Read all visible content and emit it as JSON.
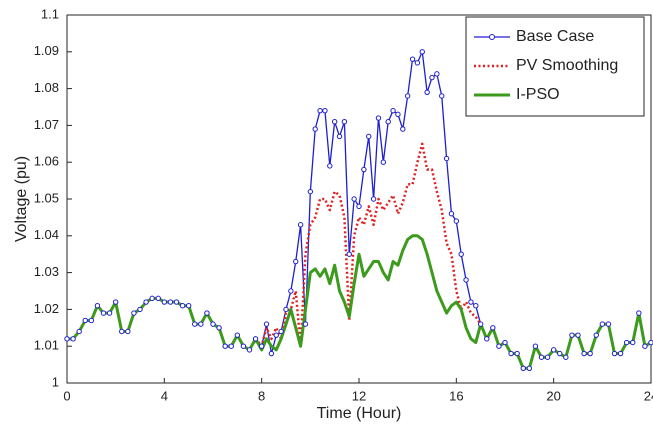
{
  "chart_data": {
    "type": "line",
    "xlabel": "Time (Hour)",
    "ylabel": "Voltage (pu)",
    "x": [
      0,
      0.25,
      0.5,
      0.75,
      1,
      1.25,
      1.5,
      1.75,
      2,
      2.25,
      2.5,
      2.75,
      3,
      3.25,
      3.5,
      3.75,
      4,
      4.25,
      4.5,
      4.75,
      5,
      5.25,
      5.5,
      5.75,
      6,
      6.25,
      6.5,
      6.75,
      7,
      7.25,
      7.5,
      7.75,
      8,
      8.2,
      8.4,
      8.6,
      8.8,
      9,
      9.2,
      9.4,
      9.6,
      9.8,
      10,
      10.2,
      10.4,
      10.6,
      10.8,
      11,
      11.2,
      11.4,
      11.6,
      11.8,
      12,
      12.2,
      12.4,
      12.6,
      12.8,
      13,
      13.2,
      13.4,
      13.6,
      13.8,
      14,
      14.2,
      14.4,
      14.6,
      14.8,
      15,
      15.2,
      15.4,
      15.6,
      15.8,
      16,
      16.2,
      16.4,
      16.6,
      16.8,
      17,
      17.25,
      17.5,
      17.75,
      18,
      18.25,
      18.5,
      18.75,
      19,
      19.25,
      19.5,
      19.75,
      20,
      20.25,
      20.5,
      20.75,
      21,
      21.25,
      21.5,
      21.75,
      22,
      22.25,
      22.5,
      22.75,
      23,
      23.25,
      23.5,
      23.75,
      24
    ],
    "series": [
      {
        "name": "Base Case",
        "color": "#1f1fd0",
        "marker": "circle",
        "line_style": "solid",
        "values": [
          1.012,
          1.012,
          1.014,
          1.017,
          1.017,
          1.021,
          1.019,
          1.019,
          1.022,
          1.014,
          1.014,
          1.019,
          1.02,
          1.022,
          1.023,
          1.023,
          1.022,
          1.022,
          1.022,
          1.021,
          1.021,
          1.016,
          1.016,
          1.019,
          1.016,
          1.015,
          1.01,
          1.01,
          1.013,
          1.01,
          1.009,
          1.012,
          1.01,
          1.016,
          1.008,
          1.013,
          1.014,
          1.02,
          1.025,
          1.033,
          1.043,
          1.016,
          1.052,
          1.069,
          1.074,
          1.074,
          1.059,
          1.071,
          1.067,
          1.071,
          1.035,
          1.05,
          1.048,
          1.058,
          1.067,
          1.05,
          1.072,
          1.06,
          1.071,
          1.074,
          1.073,
          1.069,
          1.078,
          1.088,
          1.087,
          1.09,
          1.079,
          1.083,
          1.084,
          1.078,
          1.061,
          1.046,
          1.044,
          1.035,
          1.028,
          1.022,
          1.021,
          1.016,
          1.012,
          1.015,
          1.01,
          1.011,
          1.008,
          1.008,
          1.004,
          1.004,
          1.01,
          1.007,
          1.007,
          1.009,
          1.008,
          1.007,
          1.013,
          1.013,
          1.008,
          1.008,
          1.013,
          1.016,
          1.016,
          1.008,
          1.008,
          1.011,
          1.011,
          1.019,
          1.01,
          1.011
        ]
      },
      {
        "name": "PV Smoothing",
        "color": "#e02020",
        "marker": "none",
        "line_style": "dotted",
        "values": [
          1.012,
          1.012,
          1.014,
          1.017,
          1.017,
          1.021,
          1.019,
          1.019,
          1.022,
          1.014,
          1.014,
          1.019,
          1.02,
          1.022,
          1.023,
          1.023,
          1.022,
          1.022,
          1.022,
          1.021,
          1.021,
          1.016,
          1.016,
          1.019,
          1.016,
          1.015,
          1.01,
          1.01,
          1.013,
          1.01,
          1.009,
          1.012,
          1.01,
          1.015,
          1.012,
          1.015,
          1.012,
          1.019,
          1.02,
          1.025,
          1.01,
          1.035,
          1.043,
          1.045,
          1.05,
          1.05,
          1.047,
          1.052,
          1.051,
          1.045,
          1.017,
          1.04,
          1.045,
          1.043,
          1.048,
          1.043,
          1.05,
          1.047,
          1.049,
          1.051,
          1.046,
          1.049,
          1.054,
          1.054,
          1.06,
          1.065,
          1.058,
          1.058,
          1.052,
          1.047,
          1.038,
          1.035,
          1.025,
          1.02,
          1.022,
          1.019,
          1.018,
          1.016,
          1.012,
          1.015,
          1.01,
          1.011,
          1.008,
          1.008,
          1.004,
          1.004,
          1.01,
          1.007,
          1.007,
          1.009,
          1.008,
          1.007,
          1.013,
          1.013,
          1.008,
          1.008,
          1.013,
          1.016,
          1.016,
          1.008,
          1.008,
          1.011,
          1.011,
          1.019,
          1.01,
          1.011
        ]
      },
      {
        "name": "I-PSO",
        "color": "#3c9a1c",
        "marker": "none",
        "line_style": "solid",
        "values": [
          1.012,
          1.012,
          1.014,
          1.017,
          1.017,
          1.021,
          1.019,
          1.019,
          1.022,
          1.014,
          1.014,
          1.019,
          1.02,
          1.022,
          1.023,
          1.023,
          1.022,
          1.022,
          1.022,
          1.021,
          1.021,
          1.016,
          1.016,
          1.019,
          1.016,
          1.015,
          1.01,
          1.01,
          1.013,
          1.01,
          1.009,
          1.012,
          1.009,
          1.012,
          1.01,
          1.009,
          1.012,
          1.016,
          1.02,
          1.015,
          1.01,
          1.02,
          1.03,
          1.031,
          1.029,
          1.031,
          1.027,
          1.032,
          1.025,
          1.022,
          1.018,
          1.027,
          1.035,
          1.029,
          1.031,
          1.033,
          1.033,
          1.03,
          1.028,
          1.033,
          1.032,
          1.036,
          1.039,
          1.04,
          1.04,
          1.039,
          1.035,
          1.03,
          1.025,
          1.022,
          1.019,
          1.021,
          1.022,
          1.02,
          1.015,
          1.012,
          1.011,
          1.016,
          1.012,
          1.015,
          1.01,
          1.011,
          1.008,
          1.008,
          1.004,
          1.004,
          1.01,
          1.007,
          1.007,
          1.009,
          1.008,
          1.007,
          1.013,
          1.013,
          1.008,
          1.008,
          1.013,
          1.016,
          1.016,
          1.008,
          1.008,
          1.011,
          1.011,
          1.019,
          1.01,
          1.011
        ]
      }
    ],
    "xlim": [
      0,
      24
    ],
    "xticks": [
      0,
      4,
      8,
      12,
      16,
      20,
      24
    ],
    "ylim": [
      1,
      1.1
    ],
    "yticks": [
      1,
      1.01,
      1.02,
      1.03,
      1.04,
      1.05,
      1.06,
      1.07,
      1.08,
      1.09,
      1.1
    ],
    "grid": false,
    "legend": "upper right"
  }
}
